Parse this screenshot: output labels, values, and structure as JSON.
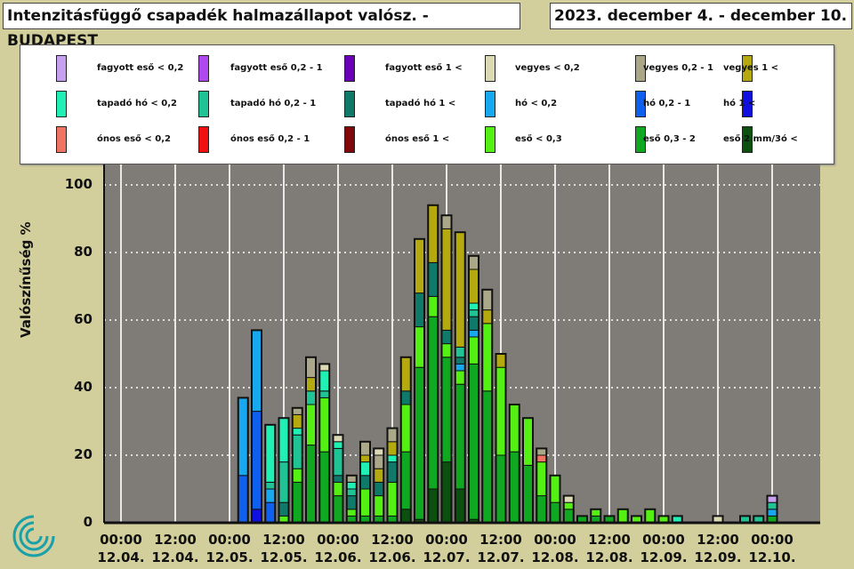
{
  "title": "Intenzitásfüggő csapadék halmazállapot valósz. - BUDAPEST",
  "date_range": "2023. december 4. - december 10.",
  "chart_data": {
    "type": "bar",
    "stacked": true,
    "ylabel": "Valószínűség %",
    "ylim": [
      0,
      100
    ],
    "yticks": [
      "0",
      "20",
      "40",
      "60",
      "80",
      "100"
    ],
    "x_unit": "hours since 12.04. 00:00",
    "xticks": [
      {
        "time": "00:00",
        "date": "12.04."
      },
      {
        "time": "12:00",
        "date": "12.04."
      },
      {
        "time": "00:00",
        "date": "12.05."
      },
      {
        "time": "12:00",
        "date": "12.05."
      },
      {
        "time": "00:00",
        "date": "12.06."
      },
      {
        "time": "12:00",
        "date": "12.06."
      },
      {
        "time": "00:00",
        "date": "12.07."
      },
      {
        "time": "12:00",
        "date": "12.07."
      },
      {
        "time": "00:00",
        "date": "12.08."
      },
      {
        "time": "12:00",
        "date": "12.08."
      },
      {
        "time": "00:00",
        "date": "12.09."
      },
      {
        "time": "12:00",
        "date": "12.09."
      },
      {
        "time": "00:00",
        "date": "12.10."
      }
    ],
    "categories": [
      {
        "label": "fagyott eső < 0,2",
        "color": "#c8a0f0"
      },
      {
        "label": "fagyott eső 0,2 - 1",
        "color": "#b048f0"
      },
      {
        "label": "fagyott eső 1 <",
        "color": "#6a00b8"
      },
      {
        "label": "vegyes < 0,2",
        "color": "#dcdab4"
      },
      {
        "label": "vegyes 0,2 - 1",
        "color": "#aaa888"
      },
      {
        "label": "vegyes 1 <",
        "color": "#b4aa10"
      },
      {
        "label": "tapadó hó < 0,2",
        "color": "#20f0b4"
      },
      {
        "label": "tapadó hó 0,2 - 1",
        "color": "#20c494"
      },
      {
        "label": "tapadó hó 1 <",
        "color": "#107a6a"
      },
      {
        "label": "hó < 0,2",
        "color": "#18a8f0"
      },
      {
        "label": "hó 0,2 - 1",
        "color": "#1060f0"
      },
      {
        "label": "hó 1 <",
        "color": "#1010e0"
      },
      {
        "label": "ónos eső < 0,2",
        "color": "#f07464"
      },
      {
        "label": "ónos eső 0,2 - 1",
        "color": "#f01010"
      },
      {
        "label": "ónos eső 1 <",
        "color": "#800808"
      },
      {
        "label": "eső < 0,3",
        "color": "#54f014"
      },
      {
        "label": "eső 0,3 - 2",
        "color": "#10a820"
      },
      {
        "label": "eső 2 mm/3ó <",
        "color": "#0c5010"
      }
    ],
    "bars": [
      {
        "t": 27,
        "segs": [
          [
            10,
            14
          ],
          [
            9,
            23
          ]
        ]
      },
      {
        "t": 30,
        "segs": [
          [
            11,
            4
          ],
          [
            10,
            29
          ],
          [
            9,
            24
          ]
        ]
      },
      {
        "t": 33,
        "segs": [
          [
            10,
            6
          ],
          [
            9,
            4
          ],
          [
            7,
            2
          ],
          [
            6,
            17
          ]
        ]
      },
      {
        "t": 36,
        "segs": [
          [
            15,
            2
          ],
          [
            8,
            4
          ],
          [
            7,
            12
          ],
          [
            6,
            13
          ]
        ]
      },
      {
        "t": 39,
        "segs": [
          [
            16,
            12
          ],
          [
            15,
            4
          ],
          [
            7,
            10
          ],
          [
            6,
            2
          ],
          [
            5,
            4
          ],
          [
            4,
            2
          ]
        ]
      },
      {
        "t": 42,
        "segs": [
          [
            16,
            23
          ],
          [
            15,
            12
          ],
          [
            7,
            4
          ],
          [
            5,
            4
          ],
          [
            4,
            6
          ]
        ]
      },
      {
        "t": 45,
        "segs": [
          [
            16,
            21
          ],
          [
            15,
            16
          ],
          [
            7,
            2
          ],
          [
            6,
            6
          ],
          [
            3,
            2
          ]
        ]
      },
      {
        "t": 48,
        "segs": [
          [
            16,
            8
          ],
          [
            15,
            4
          ],
          [
            8,
            2
          ],
          [
            7,
            8
          ],
          [
            6,
            2
          ],
          [
            3,
            2
          ]
        ]
      },
      {
        "t": 51,
        "segs": [
          [
            16,
            2
          ],
          [
            15,
            2
          ],
          [
            8,
            4
          ],
          [
            7,
            2
          ],
          [
            6,
            2
          ],
          [
            4,
            2
          ]
        ]
      },
      {
        "t": 54,
        "segs": [
          [
            16,
            2
          ],
          [
            15,
            8
          ],
          [
            8,
            4
          ],
          [
            6,
            4
          ],
          [
            5,
            2
          ],
          [
            4,
            4
          ]
        ]
      },
      {
        "t": 57,
        "segs": [
          [
            16,
            2
          ],
          [
            15,
            6
          ],
          [
            8,
            4
          ],
          [
            5,
            4
          ],
          [
            4,
            4
          ],
          [
            3,
            2
          ]
        ]
      },
      {
        "t": 60,
        "segs": [
          [
            16,
            2
          ],
          [
            15,
            10
          ],
          [
            8,
            6
          ],
          [
            6,
            2
          ],
          [
            5,
            4
          ],
          [
            4,
            4
          ]
        ]
      },
      {
        "t": 63,
        "segs": [
          [
            17,
            4
          ],
          [
            16,
            17
          ],
          [
            15,
            14
          ],
          [
            8,
            4
          ],
          [
            5,
            10
          ]
        ]
      },
      {
        "t": 66,
        "segs": [
          [
            17,
            1
          ],
          [
            16,
            45
          ],
          [
            15,
            12
          ],
          [
            8,
            10
          ],
          [
            5,
            16
          ]
        ]
      },
      {
        "t": 69,
        "segs": [
          [
            17,
            10
          ],
          [
            16,
            51
          ],
          [
            15,
            6
          ],
          [
            8,
            10
          ],
          [
            5,
            17
          ]
        ]
      },
      {
        "t": 72,
        "segs": [
          [
            17,
            18
          ],
          [
            16,
            31
          ],
          [
            15,
            4
          ],
          [
            8,
            4
          ],
          [
            5,
            30
          ],
          [
            4,
            4
          ]
        ]
      },
      {
        "t": 75,
        "segs": [
          [
            17,
            10
          ],
          [
            16,
            31
          ],
          [
            15,
            4
          ],
          [
            9,
            2
          ],
          [
            8,
            2
          ],
          [
            7,
            3
          ],
          [
            5,
            34
          ]
        ]
      },
      {
        "t": 78,
        "segs": [
          [
            17,
            1
          ],
          [
            16,
            46
          ],
          [
            15,
            8
          ],
          [
            9,
            2
          ],
          [
            8,
            4
          ],
          [
            7,
            2
          ],
          [
            6,
            2
          ],
          [
            5,
            10
          ],
          [
            4,
            4
          ]
        ]
      },
      {
        "t": 81,
        "segs": [
          [
            16,
            39
          ],
          [
            15,
            20
          ],
          [
            5,
            4
          ],
          [
            4,
            6
          ]
        ]
      },
      {
        "t": 84,
        "segs": [
          [
            16,
            20
          ],
          [
            15,
            26
          ],
          [
            5,
            4
          ]
        ]
      },
      {
        "t": 87,
        "segs": [
          [
            16,
            21
          ],
          [
            15,
            14
          ]
        ]
      },
      {
        "t": 90,
        "segs": [
          [
            16,
            17
          ],
          [
            15,
            14
          ]
        ]
      },
      {
        "t": 93,
        "segs": [
          [
            16,
            8
          ],
          [
            15,
            10
          ],
          [
            12,
            2
          ],
          [
            4,
            2
          ]
        ]
      },
      {
        "t": 96,
        "segs": [
          [
            16,
            6
          ],
          [
            15,
            8
          ]
        ]
      },
      {
        "t": 99,
        "segs": [
          [
            16,
            4
          ],
          [
            15,
            2
          ],
          [
            3,
            2
          ]
        ]
      },
      {
        "t": 102,
        "segs": [
          [
            16,
            2
          ]
        ]
      },
      {
        "t": 105,
        "segs": [
          [
            16,
            2
          ],
          [
            15,
            2
          ]
        ]
      },
      {
        "t": 108,
        "segs": [
          [
            16,
            2
          ]
        ]
      },
      {
        "t": 111,
        "segs": [
          [
            15,
            4
          ]
        ]
      },
      {
        "t": 114,
        "segs": [
          [
            15,
            2
          ]
        ]
      },
      {
        "t": 117,
        "segs": [
          [
            15,
            4
          ]
        ]
      },
      {
        "t": 120,
        "segs": [
          [
            15,
            2
          ]
        ]
      },
      {
        "t": 123,
        "segs": [
          [
            6,
            2
          ]
        ]
      },
      {
        "t": 132,
        "segs": [
          [
            3,
            2
          ]
        ]
      },
      {
        "t": 138,
        "segs": [
          [
            7,
            2
          ]
        ]
      },
      {
        "t": 141,
        "segs": [
          [
            7,
            2
          ]
        ]
      },
      {
        "t": 144,
        "segs": [
          [
            16,
            2
          ],
          [
            9,
            2
          ],
          [
            7,
            2
          ],
          [
            0,
            2
          ]
        ]
      }
    ]
  }
}
